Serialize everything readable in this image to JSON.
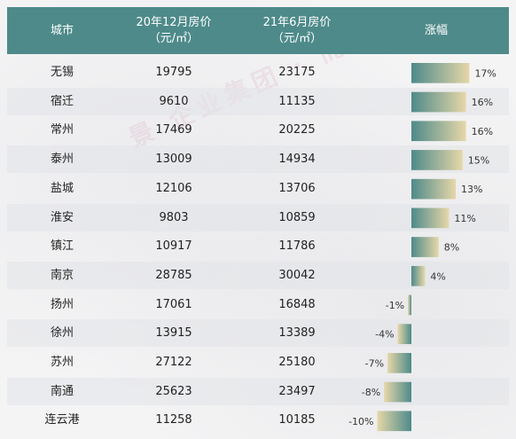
{
  "header": {
    "city": "城市",
    "price_dec_line1": "20年12月房价",
    "price_dec_line2": "（元/㎡）",
    "price_jun_line1": "21年6月房价",
    "price_jun_line2": "（元/㎡）",
    "change": "涨幅"
  },
  "colors": {
    "header_bg": "#4e8a8a",
    "bar_start": "#4e8a8a",
    "bar_end": "#e6d7a8"
  },
  "chart_data": {
    "type": "table",
    "columns": [
      "城市",
      "20年12月房价（元/㎡）",
      "21年6月房价（元/㎡）",
      "涨幅"
    ],
    "rows": [
      {
        "city": "无锡",
        "price_dec_2020": "19795",
        "price_jun_2021": "23175",
        "change_pct": 17,
        "change_label": "17%"
      },
      {
        "city": "宿迁",
        "price_dec_2020": "9610",
        "price_jun_2021": "11135",
        "change_pct": 16,
        "change_label": "16%"
      },
      {
        "city": "常州",
        "price_dec_2020": "17469",
        "price_jun_2021": "20225",
        "change_pct": 16,
        "change_label": "16%"
      },
      {
        "city": "泰州",
        "price_dec_2020": "13009",
        "price_jun_2021": "14934",
        "change_pct": 15,
        "change_label": "15%"
      },
      {
        "city": "盐城",
        "price_dec_2020": "12106",
        "price_jun_2021": "13706",
        "change_pct": 13,
        "change_label": "13%"
      },
      {
        "city": "淮安",
        "price_dec_2020": "9803",
        "price_jun_2021": "10859",
        "change_pct": 11,
        "change_label": "11%"
      },
      {
        "city": "镇江",
        "price_dec_2020": "10917",
        "price_jun_2021": "11786",
        "change_pct": 8,
        "change_label": "8%"
      },
      {
        "city": "南京",
        "price_dec_2020": "28785",
        "price_jun_2021": "30042",
        "change_pct": 4,
        "change_label": "4%"
      },
      {
        "city": "扬州",
        "price_dec_2020": "17061",
        "price_jun_2021": "16848",
        "change_pct": -1,
        "change_label": "-1%"
      },
      {
        "city": "徐州",
        "price_dec_2020": "13915",
        "price_jun_2021": "13389",
        "change_pct": -4,
        "change_label": "-4%"
      },
      {
        "city": "苏州",
        "price_dec_2020": "27122",
        "price_jun_2021": "25180",
        "change_pct": -7,
        "change_label": "-7%"
      },
      {
        "city": "南通",
        "price_dec_2020": "25623",
        "price_jun_2021": "23497",
        "change_pct": -8,
        "change_label": "-8%"
      },
      {
        "city": "连云港",
        "price_dec_2020": "11258",
        "price_jun_2021": "10185",
        "change_pct": -10,
        "change_label": "-10%"
      }
    ]
  },
  "watermark": "景 企业集团 · 而 瑞"
}
